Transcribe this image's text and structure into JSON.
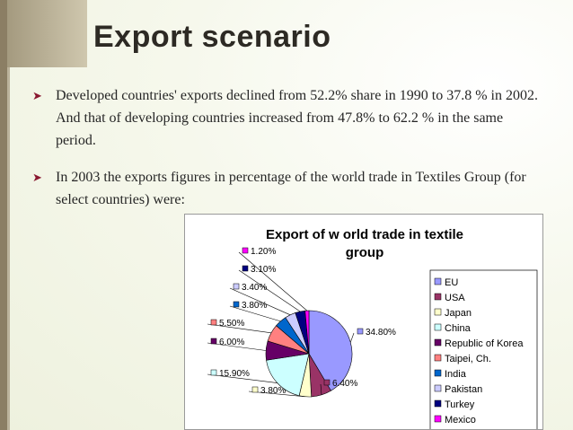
{
  "slide": {
    "title": "Export scenario",
    "bullets": [
      "Developed countries' exports declined from 52.2% share in 1990 to 37.8 % in 2002. And that of developing countries increased from 47.8% to 62.2 % in the same period.",
      "In 2003 the exports figures in percentage of the world trade in Textiles Group (for select countries) were:"
    ]
  },
  "colors": {
    "brand_bar": "#8b7e64",
    "bullet_arrow": "#8a1830"
  },
  "chart_data": {
    "type": "pie",
    "title": "Export of world trade in textile group",
    "title_lines": [
      "Export of w orld trade in textile",
      "group"
    ],
    "legend_position": "right",
    "series": [
      {
        "name": "EU",
        "value": 34.8,
        "label": "34.80%",
        "color": "#9999ff"
      },
      {
        "name": "USA",
        "value": 6.4,
        "label": "6.40%",
        "color": "#993366"
      },
      {
        "name": "Japan",
        "value": 3.8,
        "label": "3.80%",
        "color": "#ffffcc"
      },
      {
        "name": "China",
        "value": 15.9,
        "label": "15.90%",
        "color": "#ccffff"
      },
      {
        "name": "Republic of Korea",
        "value": 6.0,
        "label": "6.00%",
        "color": "#660066"
      },
      {
        "name": "Taipei, Ch.",
        "value": 5.5,
        "label": "5.50%",
        "color": "#ff8080"
      },
      {
        "name": "India",
        "value": 3.8,
        "label": "3.80%",
        "color": "#0066cc"
      },
      {
        "name": "Pakistan",
        "value": 3.4,
        "label": "3.40%",
        "color": "#ccccff"
      },
      {
        "name": "Turkey",
        "value": 3.1,
        "label": "3.10%",
        "color": "#000080"
      },
      {
        "name": "Mexico",
        "value": 1.2,
        "label": "1.20%",
        "color": "#ff00ff"
      }
    ]
  }
}
